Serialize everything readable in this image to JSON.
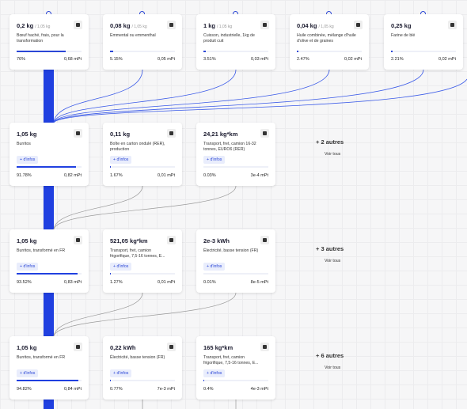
{
  "top_cards": [
    {
      "quantity": "0,2 kg",
      "ref": "/ 1,05 kg",
      "label": "Bœuf haché, frais, pour la transformation",
      "percent": "76%",
      "impact": "0,68 mPt"
    },
    {
      "quantity": "0,08 kg",
      "ref": "/ 1,05 kg",
      "label": "Emmental ou emmenthal",
      "percent": "5.15%",
      "impact": "0,05 mPt"
    },
    {
      "quantity": "1 kg",
      "ref": "/ 1,05 kg",
      "label": "Cuisson, industrielle, 1kg de produit cuit",
      "percent": "3.51%",
      "impact": "0,03 mPt"
    },
    {
      "quantity": "0,04 kg",
      "ref": "/ 1,05 kg",
      "label": "Huile combinée, mélange d'huile d'olive et de graines",
      "percent": "2.47%",
      "impact": "0,02 mPt"
    },
    {
      "quantity": "0,25 kg",
      "label": "Farine de blé",
      "percent": "2.21%",
      "impact": "0,02 mPt"
    }
  ],
  "rows": [
    {
      "cards": [
        {
          "quantity": "1,05 kg",
          "label": "Burritos",
          "more": "+ d'infos",
          "percent": "91.78%",
          "impact": "0,82 mPt"
        },
        {
          "quantity": "0,11 kg",
          "label": "Boîte en carton ondulé (RER), production",
          "more": "+ d'infos",
          "percent": "1.67%",
          "impact": "0,01 mPt"
        },
        {
          "quantity": "24,21 kg*km",
          "label": "Transport, fret, camion 16-32 tonnes, EURO6 (RER)",
          "more": "+ d'infos",
          "percent": "0.03%",
          "impact": "3e-4 mPt"
        }
      ],
      "others": "+ 2 autres",
      "see_all": "Voir tous"
    },
    {
      "cards": [
        {
          "quantity": "1,05 kg",
          "label": "Burritos, transformé en FR",
          "more": "+ d'infos",
          "percent": "93.52%",
          "impact": "0,83 mPt"
        },
        {
          "quantity": "521,05 kg*km",
          "label": "Transport, fret, camion frigorifique, 7,5-16 tonnes, E...",
          "more": "+ d'infos",
          "percent": "1.27%",
          "impact": "0,01 mPt"
        },
        {
          "quantity": "2e-3 kWh",
          "label": "Électricité, basse tension (FR)",
          "more": "+ d'infos",
          "percent": "0.01%",
          "impact": "8e-5 mPt"
        }
      ],
      "others": "+ 3 autres",
      "see_all": "Voir tous"
    },
    {
      "cards": [
        {
          "quantity": "1,05 kg",
          "label": "Burritos, transformé en FR",
          "more": "+ d'infos",
          "percent": "94.82%",
          "impact": "0,84 mPt"
        },
        {
          "quantity": "0,22 kWh",
          "label": "Électricité, basse tension (FR)",
          "more": "+ d'infos",
          "percent": "0.77%",
          "impact": "7e-3 mPt"
        },
        {
          "quantity": "165 kg*km",
          "label": "Transport, fret, camion frigorifique, 7,5-16 tonnes, E...",
          "more": "+ d'infos",
          "percent": "0.4%",
          "impact": "4e-3 mPt"
        }
      ],
      "others": "+ 6 autres",
      "see_all": "Voir tous"
    }
  ]
}
